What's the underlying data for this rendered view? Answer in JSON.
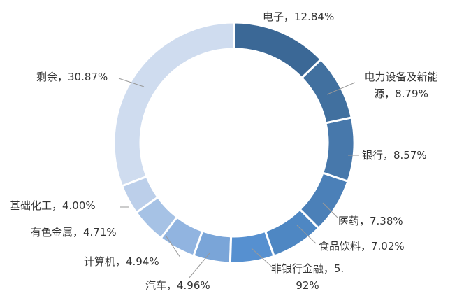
{
  "chart_data": {
    "type": "donut",
    "values": [
      12.84,
      8.79,
      8.57,
      7.38,
      7.02,
      5.92,
      4.96,
      4.94,
      4.71,
      4.0,
      30.87
    ],
    "value_labels": [
      "电子，12.84%",
      "电力设备及新能源，8.79%",
      "银行，8.57%",
      "医药，7.38%",
      "食品饮料，7.02%",
      "非银行金融，5.92%",
      "汽车，4.96%",
      "计算机，4.94%",
      "有色金属，4.71%",
      "基础化工，4.00%",
      "剩余，30.87%"
    ],
    "colors": [
      "#3b6896",
      "#41709f",
      "#4778ab",
      "#4b80b8",
      "#4e87c3",
      "#5690d0",
      "#7aa5d8",
      "#91b4e0",
      "#a6c2e5",
      "#bccfea",
      "#cfdcef"
    ]
  }
}
